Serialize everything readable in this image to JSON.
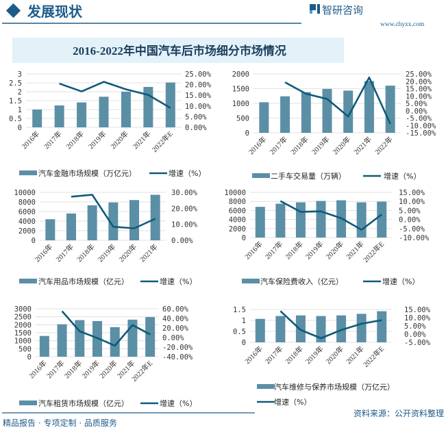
{
  "header": {
    "section_title": "发展现状",
    "logo_text": "智研咨询",
    "website": "www.chyxx.com"
  },
  "main_title": "2016-2022年中国汽车后市场细分市场情况",
  "footer": {
    "slogan": "精品报告 · 专项定制 · 品质服务",
    "source": "资料来源：公开资料整理"
  },
  "colors": {
    "bar": "#5b8fa6",
    "line": "#0e5a78",
    "accent": "#1d5b8a",
    "title_bg": "#e3f1f9"
  },
  "chart_data": [
    {
      "type": "bar+line",
      "categories": [
        "2016年",
        "2017年",
        "2018年",
        "2019年",
        "2020年",
        "2021年",
        "2022年E"
      ],
      "series": [
        {
          "name": "汽车金融市场规模（万亿元）",
          "type": "bar",
          "axis": "left",
          "values": [
            1.0,
            1.23,
            1.4,
            1.72,
            2.0,
            2.27,
            2.52
          ]
        },
        {
          "name": "增速（%）",
          "type": "line",
          "axis": "right",
          "values": [
            null,
            20.5,
            16.8,
            21.3,
            17.8,
            15.2,
            9.1
          ]
        }
      ],
      "ylim": [
        0,
        3
      ],
      "yticks": [
        "0",
        "0.5",
        "1",
        "1.5",
        "2",
        "2.5",
        "3"
      ],
      "y2lim": [
        0,
        25
      ],
      "y2ticks": [
        "0.00%",
        "5.00%",
        "10.00%",
        "15.00%",
        "20.00%",
        "25.00%"
      ],
      "grid": true,
      "legend": "bottom"
    },
    {
      "type": "bar+line",
      "categories": [
        "2016年",
        "2017年",
        "2018年",
        "2019年",
        "2020年",
        "2021年",
        "2022年"
      ],
      "series": [
        {
          "name": "二手车交易量（万辆）",
          "type": "bar",
          "axis": "left",
          "values": [
            1039,
            1240,
            1382,
            1492,
            1434,
            1758,
            1602
          ]
        },
        {
          "name": "增速（%）",
          "type": "line",
          "axis": "right",
          "values": [
            null,
            19.3,
            11.5,
            8.0,
            -3.9,
            22.6,
            -8.9
          ]
        }
      ],
      "ylim": [
        0,
        2000
      ],
      "yticks": [
        "0",
        "500",
        "1000",
        "1500",
        "2000"
      ],
      "y2lim": [
        -15,
        25
      ],
      "y2ticks": [
        "-15.00%",
        "-10.00%",
        "-5.00%",
        "0.00%",
        "5.00%",
        "10.00%",
        "15.00%",
        "20.00%",
        "25.00%"
      ],
      "grid": true,
      "legend": "bottom"
    },
    {
      "type": "bar+line",
      "categories": [
        "2016年",
        "2017年",
        "2018年",
        "2019年",
        "2020年",
        "2021年"
      ],
      "series": [
        {
          "name": "汽车用品市场规模（亿元）",
          "type": "bar",
          "axis": "left",
          "values": [
            4400,
            5600,
            7300,
            7900,
            8400,
            9500
          ]
        },
        {
          "name": "增速（%）",
          "type": "line",
          "axis": "right",
          "values": [
            null,
            27.3,
            28.5,
            8.5,
            7.5,
            13.5
          ]
        }
      ],
      "ylim": [
        0,
        10000
      ],
      "yticks": [
        "0",
        "2000",
        "4000",
        "6000",
        "8000",
        "10000"
      ],
      "y2lim": [
        0,
        30
      ],
      "y2ticks": [
        "0.00%",
        "10.00%",
        "20.00%",
        "30.00%"
      ],
      "grid": true,
      "legend": "bottom"
    },
    {
      "type": "bar+line",
      "categories": [
        "2016年",
        "2017年",
        "2018年",
        "2019年",
        "2020年",
        "2021年",
        "2022年E"
      ],
      "series": [
        {
          "name": "汽车保险费收入（亿元）",
          "type": "bar",
          "axis": "left",
          "values": [
            6800,
            7500,
            7800,
            8100,
            8250,
            7800,
            7950
          ]
        },
        {
          "name": "增速（%）",
          "type": "line",
          "axis": "right",
          "values": [
            null,
            10.2,
            4.2,
            4.5,
            0.7,
            -5.7,
            2.8
          ]
        }
      ],
      "ylim": [
        0,
        10000
      ],
      "yticks": [
        "0",
        "2000",
        "4000",
        "6000",
        "8000",
        "10000"
      ],
      "y2lim": [
        -10,
        15
      ],
      "y2ticks": [
        "-10.00%",
        "-5.00%",
        "0.00%",
        "5.00%",
        "10.00%",
        "15.00%"
      ],
      "grid": true,
      "legend": "bottom"
    },
    {
      "type": "bar+line",
      "categories": [
        "2016年",
        "2017年",
        "2018年",
        "2019年",
        "2020年",
        "2021年",
        "2022年E"
      ],
      "series": [
        {
          "name": "汽车租赁市场规模（亿元）",
          "type": "bar",
          "axis": "left",
          "values": [
            1300,
            2030,
            2290,
            2230,
            1850,
            2320,
            2480
          ]
        },
        {
          "name": "增速（%）",
          "type": "line",
          "axis": "right",
          "values": [
            null,
            55,
            13,
            -1,
            -17,
            26,
            6.5
          ]
        }
      ],
      "ylim": [
        0,
        3000
      ],
      "yticks": [
        "0",
        "500",
        "1000",
        "1500",
        "2000",
        "2500",
        "3000"
      ],
      "y2lim": [
        -40,
        60
      ],
      "y2ticks": [
        "-40.00%",
        "-20.00%",
        "0.00%",
        "20.00%",
        "40.00%",
        "60.00%"
      ],
      "grid": true,
      "legend": "bottom"
    },
    {
      "type": "bar+line",
      "categories": [
        "2016年",
        "2017年",
        "2018年",
        "2019年",
        "2020年",
        "2021年",
        "2022年E"
      ],
      "series": [
        {
          "name": "汽车维修与保养市场规模（万亿元）",
          "type": "bar",
          "axis": "left",
          "values": [
            1.07,
            1.2,
            1.23,
            1.2,
            1.23,
            1.3,
            1.42
          ]
        },
        {
          "name": "增速（%）",
          "type": "line",
          "axis": "right",
          "values": [
            null,
            14,
            2.5,
            -2.5,
            2.5,
            6.3,
            8.5
          ]
        }
      ],
      "ylim": [
        0,
        1.5
      ],
      "yticks": [
        "0",
        "0.5",
        "1",
        "1.5"
      ],
      "y2lim": [
        -5,
        15
      ],
      "y2ticks": [
        "-5.00%",
        "0.00%",
        "5.00%",
        "10.00%",
        "15.00%"
      ],
      "grid": true,
      "legend": "bottom"
    }
  ]
}
